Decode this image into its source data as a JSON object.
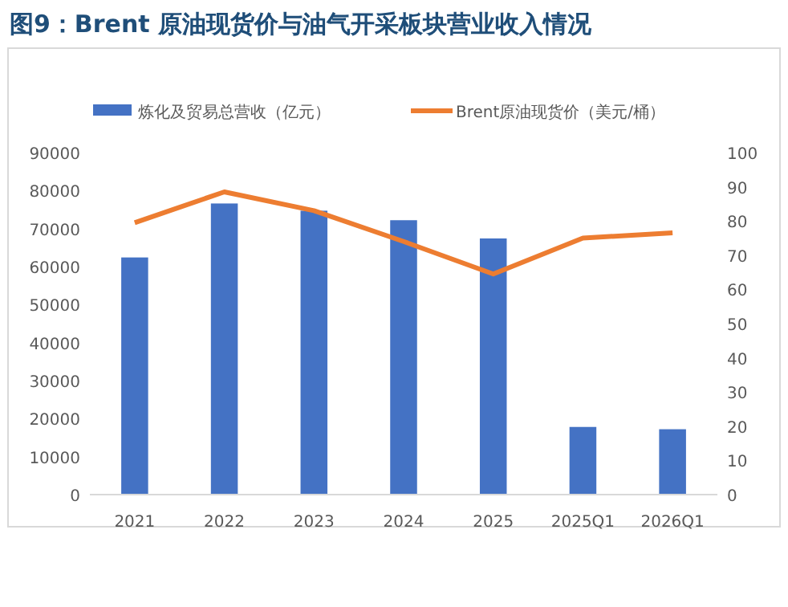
{
  "chart_data": {
    "type": "bar",
    "title": "图9：Brent 原油现货价与油气开采板块营业收入情况",
    "categories": [
      "2021",
      "2022",
      "2023",
      "2024",
      "2025",
      "2025Q1",
      "2026Q1"
    ],
    "series": [
      {
        "name": "炼化及贸易总营收（亿元）",
        "color": "#4472c4",
        "values": [
          62400,
          76600,
          74700,
          72200,
          67400,
          17800,
          17200
        ]
      },
      {
        "name": "Brent原油现货价（美元/桶）",
        "type": "line",
        "axis": "y2",
        "color": "#ed7d31",
        "values": [
          79.5,
          88.5,
          83,
          74,
          64.5,
          75,
          76.5
        ]
      }
    ],
    "ylim": [
      0,
      90000
    ],
    "yticks": [
      0,
      10000,
      20000,
      30000,
      40000,
      50000,
      60000,
      70000,
      80000,
      90000
    ],
    "y2lim": [
      0,
      100
    ],
    "y2ticks": [
      0,
      10,
      20,
      30,
      40,
      50,
      60,
      70,
      80,
      90,
      100
    ],
    "legend": "top",
    "grid": false,
    "marker": "none",
    "line_style": "solid"
  }
}
